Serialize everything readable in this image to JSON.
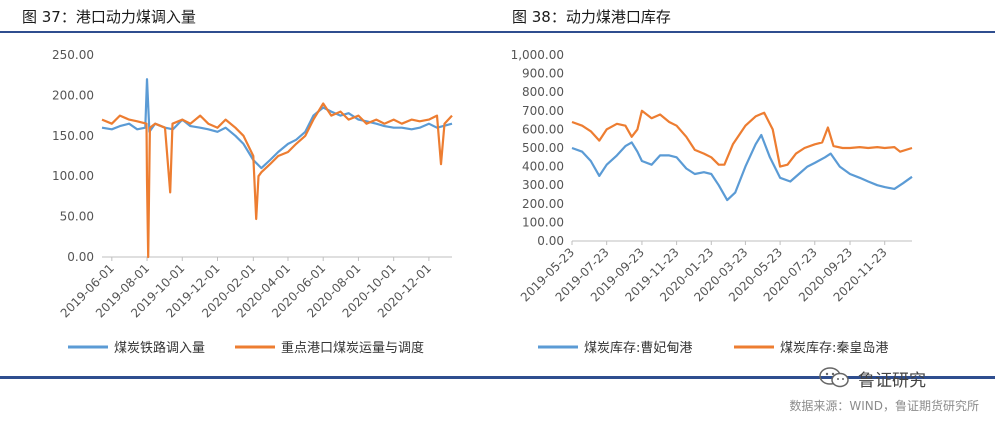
{
  "colors": {
    "blue": "#5b9bd5",
    "orange": "#ed7d31",
    "rule": "#2f4e8f"
  },
  "left_title": "图 37：港口动力煤调入量",
  "right_title": "图 38：动力煤港口库存",
  "logo_text": "鲁证研究",
  "source": "数据来源：WIND，鲁证期货研究所",
  "chart_data": [
    {
      "type": "line",
      "title": "图 37：港口动力煤调入量",
      "xlabel": "",
      "ylabel": "",
      "ylim": [
        0,
        250
      ],
      "yticks": [
        "0.00",
        "50.00",
        "100.00",
        "150.00",
        "200.00",
        "250.00"
      ],
      "xticks": [
        "2019-06-01",
        "2019-08-01",
        "2019-10-01",
        "2019-12-01",
        "2020-02-01",
        "2020-04-01",
        "2020-06-01",
        "2020-08-01",
        "2020-10-01",
        "2020-12-01"
      ],
      "x_range": [
        "2019-05-15",
        "2021-01-10"
      ],
      "legend": "bottom",
      "series": [
        {
          "name": "煤炭铁路调入量",
          "color": "#5b9bd5",
          "points": [
            [
              "2019-05-15",
              160
            ],
            [
              "2019-06-01",
              158
            ],
            [
              "2019-06-15",
              162
            ],
            [
              "2019-07-01",
              165
            ],
            [
              "2019-07-15",
              158
            ],
            [
              "2019-07-29",
              160
            ],
            [
              "2019-08-01",
              220
            ],
            [
              "2019-08-05",
              155
            ],
            [
              "2019-08-15",
              165
            ],
            [
              "2019-09-01",
              160
            ],
            [
              "2019-09-15",
              158
            ],
            [
              "2019-10-01",
              170
            ],
            [
              "2019-10-15",
              162
            ],
            [
              "2019-11-01",
              160
            ],
            [
              "2019-11-15",
              158
            ],
            [
              "2019-12-01",
              155
            ],
            [
              "2019-12-15",
              160
            ],
            [
              "2020-01-01",
              150
            ],
            [
              "2020-01-15",
              140
            ],
            [
              "2020-02-01",
              120
            ],
            [
              "2020-02-15",
              110
            ],
            [
              "2020-03-01",
              120
            ],
            [
              "2020-03-15",
              130
            ],
            [
              "2020-04-01",
              140
            ],
            [
              "2020-04-15",
              145
            ],
            [
              "2020-05-01",
              155
            ],
            [
              "2020-05-15",
              175
            ],
            [
              "2020-06-01",
              185
            ],
            [
              "2020-06-15",
              180
            ],
            [
              "2020-07-01",
              175
            ],
            [
              "2020-07-15",
              178
            ],
            [
              "2020-08-01",
              170
            ],
            [
              "2020-08-15",
              168
            ],
            [
              "2020-09-01",
              165
            ],
            [
              "2020-09-15",
              162
            ],
            [
              "2020-10-01",
              160
            ],
            [
              "2020-10-15",
              160
            ],
            [
              "2020-11-01",
              158
            ],
            [
              "2020-11-15",
              160
            ],
            [
              "2020-12-01",
              165
            ],
            [
              "2020-12-15",
              160
            ],
            [
              "2021-01-10",
              165
            ]
          ]
        },
        {
          "name": "重点港口煤炭运量与调度",
          "color": "#ed7d31",
          "points": [
            [
              "2019-05-15",
              170
            ],
            [
              "2019-06-01",
              165
            ],
            [
              "2019-06-15",
              175
            ],
            [
              "2019-07-01",
              170
            ],
            [
              "2019-07-15",
              168
            ],
            [
              "2019-07-31",
              165
            ],
            [
              "2019-08-01",
              95
            ],
            [
              "2019-08-03",
              0
            ],
            [
              "2019-08-06",
              160
            ],
            [
              "2019-08-15",
              165
            ],
            [
              "2019-09-01",
              160
            ],
            [
              "2019-09-10",
              80
            ],
            [
              "2019-09-14",
              165
            ],
            [
              "2019-10-01",
              170
            ],
            [
              "2019-10-15",
              165
            ],
            [
              "2019-11-01",
              175
            ],
            [
              "2019-11-15",
              165
            ],
            [
              "2019-12-01",
              160
            ],
            [
              "2019-12-15",
              170
            ],
            [
              "2020-01-01",
              160
            ],
            [
              "2020-01-15",
              150
            ],
            [
              "2020-02-01",
              125
            ],
            [
              "2020-02-06",
              47
            ],
            [
              "2020-02-10",
              100
            ],
            [
              "2020-02-15",
              105
            ],
            [
              "2020-03-01",
              115
            ],
            [
              "2020-03-15",
              125
            ],
            [
              "2020-04-01",
              130
            ],
            [
              "2020-04-15",
              140
            ],
            [
              "2020-05-01",
              150
            ],
            [
              "2020-05-15",
              170
            ],
            [
              "2020-06-01",
              190
            ],
            [
              "2020-06-15",
              175
            ],
            [
              "2020-07-01",
              180
            ],
            [
              "2020-07-15",
              170
            ],
            [
              "2020-08-01",
              175
            ],
            [
              "2020-08-15",
              165
            ],
            [
              "2020-09-01",
              170
            ],
            [
              "2020-09-15",
              165
            ],
            [
              "2020-10-01",
              170
            ],
            [
              "2020-10-15",
              165
            ],
            [
              "2020-11-01",
              170
            ],
            [
              "2020-11-15",
              168
            ],
            [
              "2020-12-01",
              170
            ],
            [
              "2020-12-15",
              175
            ],
            [
              "2020-12-22",
              115
            ],
            [
              "2020-12-28",
              165
            ],
            [
              "2021-01-10",
              175
            ]
          ]
        }
      ]
    },
    {
      "type": "line",
      "title": "图 38：动力煤港口库存",
      "xlabel": "",
      "ylabel": "",
      "ylim": [
        0,
        1000
      ],
      "yticks": [
        "0.00",
        "100.00",
        "200.00",
        "300.00",
        "400.00",
        "500.00",
        "600.00",
        "700.00",
        "800.00",
        "900.00",
        "1,000.00"
      ],
      "xticks": [
        "2019-05-23",
        "2019-07-23",
        "2019-09-23",
        "2019-11-23",
        "2020-01-23",
        "2020-03-23",
        "2020-05-23",
        "2020-07-23",
        "2020-09-23",
        "2020-11-23"
      ],
      "x_range": [
        "2019-05-23",
        "2021-01-10"
      ],
      "legend": "bottom",
      "series": [
        {
          "name": "煤炭库存:曹妃甸港",
          "color": "#5b9bd5",
          "points": [
            [
              "2019-05-23",
              500
            ],
            [
              "2019-06-10",
              480
            ],
            [
              "2019-06-25",
              430
            ],
            [
              "2019-07-10",
              350
            ],
            [
              "2019-07-23",
              410
            ],
            [
              "2019-08-10",
              460
            ],
            [
              "2019-08-25",
              510
            ],
            [
              "2019-09-05",
              530
            ],
            [
              "2019-09-15",
              480
            ],
            [
              "2019-09-23",
              430
            ],
            [
              "2019-10-10",
              410
            ],
            [
              "2019-10-25",
              460
            ],
            [
              "2019-11-10",
              460
            ],
            [
              "2019-11-23",
              450
            ],
            [
              "2019-12-10",
              390
            ],
            [
              "2019-12-25",
              360
            ],
            [
              "2020-01-10",
              370
            ],
            [
              "2020-01-23",
              360
            ],
            [
              "2020-02-05",
              300
            ],
            [
              "2020-02-20",
              220
            ],
            [
              "2020-03-05",
              260
            ],
            [
              "2020-03-23",
              400
            ],
            [
              "2020-04-10",
              520
            ],
            [
              "2020-04-20",
              570
            ],
            [
              "2020-05-05",
              450
            ],
            [
              "2020-05-23",
              340
            ],
            [
              "2020-06-10",
              320
            ],
            [
              "2020-06-25",
              360
            ],
            [
              "2020-07-10",
              400
            ],
            [
              "2020-07-23",
              420
            ],
            [
              "2020-08-10",
              450
            ],
            [
              "2020-08-20",
              470
            ],
            [
              "2020-09-05",
              400
            ],
            [
              "2020-09-23",
              360
            ],
            [
              "2020-10-10",
              340
            ],
            [
              "2020-10-25",
              320
            ],
            [
              "2020-11-10",
              300
            ],
            [
              "2020-11-23",
              290
            ],
            [
              "2020-12-10",
              280
            ],
            [
              "2020-12-25",
              310
            ],
            [
              "2021-01-10",
              345
            ]
          ]
        },
        {
          "name": "煤炭库存:秦皇岛港",
          "color": "#ed7d31",
          "points": [
            [
              "2019-05-23",
              640
            ],
            [
              "2019-06-10",
              620
            ],
            [
              "2019-06-25",
              590
            ],
            [
              "2019-07-10",
              540
            ],
            [
              "2019-07-23",
              600
            ],
            [
              "2019-08-10",
              630
            ],
            [
              "2019-08-25",
              620
            ],
            [
              "2019-09-05",
              560
            ],
            [
              "2019-09-15",
              600
            ],
            [
              "2019-09-23",
              700
            ],
            [
              "2019-10-10",
              660
            ],
            [
              "2019-10-25",
              680
            ],
            [
              "2019-11-10",
              640
            ],
            [
              "2019-11-23",
              620
            ],
            [
              "2019-12-10",
              560
            ],
            [
              "2019-12-25",
              490
            ],
            [
              "2020-01-10",
              470
            ],
            [
              "2020-01-23",
              450
            ],
            [
              "2020-02-05",
              410
            ],
            [
              "2020-02-15",
              410
            ],
            [
              "2020-03-01",
              520
            ],
            [
              "2020-03-23",
              620
            ],
            [
              "2020-04-10",
              670
            ],
            [
              "2020-04-25",
              690
            ],
            [
              "2020-05-10",
              600
            ],
            [
              "2020-05-23",
              400
            ],
            [
              "2020-06-05",
              410
            ],
            [
              "2020-06-20",
              470
            ],
            [
              "2020-07-05",
              500
            ],
            [
              "2020-07-23",
              520
            ],
            [
              "2020-08-05",
              530
            ],
            [
              "2020-08-15",
              610
            ],
            [
              "2020-08-25",
              510
            ],
            [
              "2020-09-10",
              500
            ],
            [
              "2020-09-23",
              500
            ],
            [
              "2020-10-10",
              505
            ],
            [
              "2020-10-25",
              500
            ],
            [
              "2020-11-10",
              505
            ],
            [
              "2020-11-23",
              500
            ],
            [
              "2020-12-10",
              505
            ],
            [
              "2020-12-20",
              480
            ],
            [
              "2021-01-10",
              500
            ]
          ]
        }
      ]
    }
  ]
}
